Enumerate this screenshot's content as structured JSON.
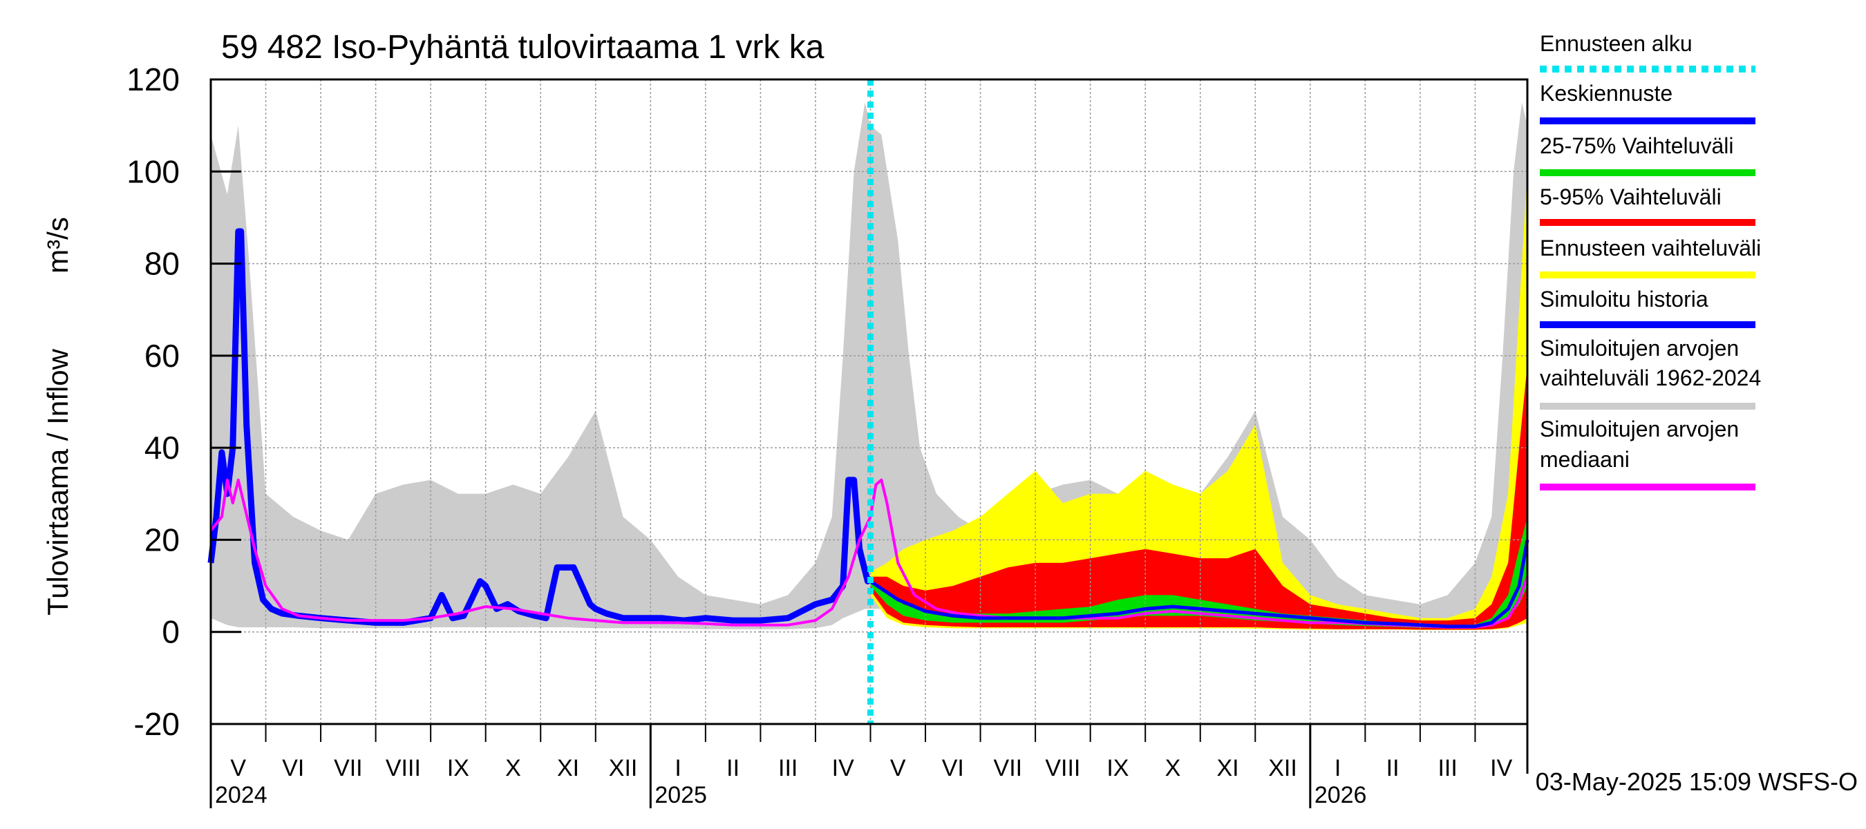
{
  "chart_data": {
    "type": "line",
    "title": "59 482 Iso-Pyhäntä tulovirtaama 1 vrk ka",
    "ylabel": "Tulovirtaama / Inflow",
    "yunit": "m³/s",
    "ylim": [
      -20,
      120
    ],
    "yticks": [
      -20,
      0,
      20,
      40,
      60,
      80,
      100,
      120
    ],
    "x_start_month": 4,
    "months": [
      "V",
      "VI",
      "VII",
      "VIII",
      "IX",
      "X",
      "XI",
      "XII",
      "I",
      "II",
      "III",
      "IV",
      "V",
      "VI",
      "VII",
      "VIII",
      "IX",
      "X",
      "XI",
      "XII",
      "I",
      "II",
      "III",
      "IV"
    ],
    "years": [
      {
        "label": "2024",
        "month_index": 0
      },
      {
        "label": "2025",
        "month_index": 8
      },
      {
        "label": "2026",
        "month_index": 20
      }
    ],
    "x_end_month": 23.95,
    "forecast_start_month": 12.0,
    "grid": true,
    "legend_position": "right",
    "legend": [
      {
        "label": "Ennusteen alku",
        "color": "#00e5ee",
        "style": "dotted"
      },
      {
        "label": "Keskiennuste",
        "color": "#0000ff",
        "style": "solid"
      },
      {
        "label": "25-75% Vaihteluväli",
        "color": "#00dd00",
        "style": "solid"
      },
      {
        "label": "5-95% Vaihteluväli",
        "color": "#ff0000",
        "style": "solid"
      },
      {
        "label": "Ennusteen vaihteluväli",
        "color": "#ffff00",
        "style": "solid"
      },
      {
        "label": "Simuloitu historia",
        "color": "#0000ff",
        "style": "solid"
      },
      {
        "label": "Simuloitujen arvojen vaihteluväli 1962-2024",
        "color": "#cccccc",
        "style": "solid"
      },
      {
        "label": "Simuloitujen arvojen mediaani",
        "color": "#ff00ff",
        "style": "solid"
      }
    ],
    "series": [
      {
        "name": "Simuloitu historia",
        "color": "#0000ff",
        "x": [
          0,
          0.1,
          0.2,
          0.3,
          0.4,
          0.5,
          0.55,
          0.65,
          0.8,
          0.95,
          1.1,
          1.3,
          1.6,
          2.0,
          2.5,
          3.0,
          3.5,
          4.0,
          4.2,
          4.4,
          4.6,
          4.9,
          5.0,
          5.2,
          5.4,
          5.6,
          5.9,
          6.1,
          6.3,
          6.6,
          6.9,
          7.0,
          7.2,
          7.5,
          7.8,
          8.2,
          8.6,
          9.0,
          9.5,
          10.0,
          10.5,
          11.0,
          11.3,
          11.5,
          11.6,
          11.7,
          11.8,
          11.95,
          12.0
        ],
        "y": [
          15,
          25,
          39,
          30,
          40,
          87,
          87,
          45,
          15,
          7,
          5,
          4,
          3.5,
          3,
          2.5,
          2,
          2,
          3,
          8,
          3,
          3.5,
          11,
          10,
          5,
          6,
          4.5,
          3.5,
          3,
          14,
          14,
          6,
          5,
          4,
          3,
          3,
          3,
          2.5,
          3,
          2.5,
          2.5,
          3,
          6,
          7,
          10,
          33,
          33,
          18,
          11,
          12
        ]
      },
      {
        "name": "Simuloitujen arvojen mediaani",
        "color": "#ff00ff",
        "x": [
          0,
          0.2,
          0.3,
          0.4,
          0.5,
          0.6,
          0.8,
          1.0,
          1.3,
          1.6,
          2.0,
          2.5,
          3.0,
          3.5,
          4.0,
          4.5,
          5.0,
          5.5,
          6.0,
          6.5,
          7.0,
          7.5,
          8.0,
          8.5,
          9.0,
          9.5,
          10.0,
          10.5,
          11.0,
          11.3,
          11.6,
          11.8,
          12.0,
          12.1,
          12.2,
          12.3,
          12.5,
          12.8,
          13.2,
          13.6,
          14.0,
          14.5,
          15.0,
          15.5,
          16.0,
          16.5,
          17.0,
          17.5,
          18.0,
          18.5,
          19.0,
          19.5,
          20.0,
          20.5,
          21.0,
          21.5,
          22.0,
          22.5,
          23.0,
          23.3,
          23.6,
          23.8,
          23.95
        ],
        "y": [
          22,
          25,
          33,
          28,
          33,
          28,
          18,
          10,
          5,
          3.5,
          3,
          2.5,
          2.5,
          2.5,
          3,
          4,
          5.5,
          5,
          4,
          3,
          2.5,
          2,
          2,
          2,
          1.8,
          1.5,
          1.5,
          1.5,
          2.5,
          5,
          12,
          20,
          25,
          32,
          33,
          28,
          15,
          8,
          5,
          4,
          3.5,
          3,
          3,
          3,
          3,
          3,
          4,
          4.5,
          4,
          3.5,
          3,
          2.5,
          2,
          2,
          1.8,
          1.5,
          1.3,
          1,
          1,
          1.5,
          3,
          7,
          12
        ]
      },
      {
        "name": "Keskiennuste",
        "color": "#0000ff",
        "x": [
          12.0,
          12.5,
          13.0,
          13.5,
          14.0,
          14.5,
          15.0,
          15.5,
          16.0,
          16.5,
          17.0,
          17.5,
          18.0,
          18.5,
          19.0,
          19.5,
          20.0,
          20.5,
          21.0,
          21.5,
          22.0,
          22.5,
          23.0,
          23.3,
          23.6,
          23.8,
          23.95
        ],
        "y": [
          11,
          7,
          4.5,
          3.5,
          3,
          3,
          3,
          3,
          3.5,
          4,
          5,
          5.5,
          5,
          4.5,
          4,
          3.5,
          3,
          2.5,
          2,
          1.8,
          1.5,
          1.2,
          1.2,
          2,
          5,
          10,
          20
        ]
      },
      {
        "name": "Simuloitujen arvojen vaihteluväli 1962-2024",
        "color": "#cccccc",
        "type": "band",
        "x": [
          0,
          0.3,
          0.5,
          0.7,
          1.0,
          1.5,
          2.0,
          2.5,
          3.0,
          3.5,
          4.0,
          4.5,
          5.0,
          5.5,
          6.0,
          6.5,
          7.0,
          7.5,
          8.0,
          8.5,
          9.0,
          9.5,
          10.0,
          10.5,
          11.0,
          11.3,
          11.5,
          11.7,
          11.9,
          12.0,
          12.2,
          12.5,
          12.7,
          12.9,
          13.2,
          13.6,
          14.0,
          14.5,
          15.0,
          15.5,
          16.0,
          16.5,
          17.0,
          17.5,
          18.0,
          18.5,
          19.0,
          19.5,
          20.0,
          20.5,
          21.0,
          21.5,
          22.0,
          22.5,
          23.0,
          23.3,
          23.5,
          23.7,
          23.85,
          23.95
        ],
        "lower": [
          3,
          1.5,
          1,
          1,
          1,
          1,
          0.8,
          0.8,
          0.8,
          0.8,
          1,
          1,
          1,
          1,
          1,
          1,
          0.8,
          0.8,
          0.8,
          0.7,
          0.6,
          0.6,
          0.6,
          0.6,
          0.8,
          1.5,
          3,
          4,
          5,
          5,
          5,
          4,
          3,
          2.5,
          2,
          1.5,
          1.2,
          1,
          1,
          1,
          1,
          1,
          1,
          1,
          1,
          1,
          0.8,
          0.8,
          0.8,
          0.7,
          0.6,
          0.6,
          0.6,
          0.6,
          0.8,
          1.5,
          3,
          4,
          5,
          5
        ],
        "upper": [
          108,
          95,
          110,
          80,
          30,
          25,
          22,
          20,
          30,
          32,
          33,
          30,
          30,
          32,
          30,
          38,
          48,
          25,
          20,
          12,
          8,
          7,
          6,
          8,
          15,
          25,
          60,
          100,
          115,
          110,
          108,
          85,
          60,
          40,
          30,
          25,
          22,
          20,
          30,
          32,
          33,
          30,
          30,
          32,
          30,
          38,
          48,
          25,
          20,
          12,
          8,
          7,
          6,
          8,
          15,
          25,
          60,
          100,
          115,
          110
        ]
      },
      {
        "name": "Ennusteen vaihteluväli",
        "color": "#ffff00",
        "type": "band",
        "x": [
          12.0,
          12.3,
          12.6,
          13.0,
          13.5,
          14.0,
          14.5,
          15.0,
          15.5,
          16.0,
          16.5,
          17.0,
          17.5,
          18.0,
          18.5,
          19.0,
          19.5,
          20.0,
          20.5,
          21.0,
          21.5,
          22.0,
          22.5,
          23.0,
          23.3,
          23.6,
          23.8,
          23.95
        ],
        "lower": [
          8,
          3,
          1.5,
          1,
          0.8,
          0.8,
          0.8,
          0.8,
          0.8,
          0.8,
          0.8,
          0.8,
          0.8,
          0.8,
          0.8,
          0.7,
          0.6,
          0.5,
          0.5,
          0.5,
          0.5,
          0.4,
          0.4,
          0.4,
          0.5,
          0.8,
          1.5,
          2
        ],
        "upper": [
          13,
          15,
          18,
          20,
          22,
          25,
          30,
          35,
          28,
          30,
          30,
          35,
          32,
          30,
          35,
          45,
          15,
          8,
          6,
          5,
          4,
          3,
          3,
          5,
          12,
          30,
          70,
          100
        ]
      },
      {
        "name": "5-95% Vaihteluväli",
        "color": "#ff0000",
        "type": "band",
        "x": [
          12.0,
          12.3,
          12.6,
          13.0,
          13.5,
          14.0,
          14.5,
          15.0,
          15.5,
          16.0,
          16.5,
          17.0,
          17.5,
          18.0,
          18.5,
          19.0,
          19.5,
          20.0,
          20.5,
          21.0,
          21.5,
          22.0,
          22.5,
          23.0,
          23.3,
          23.6,
          23.8,
          23.95
        ],
        "lower": [
          9,
          4,
          2,
          1.5,
          1.2,
          1,
          1,
          1,
          1,
          1,
          1,
          1,
          1,
          1,
          1,
          1,
          0.8,
          0.7,
          0.6,
          0.6,
          0.6,
          0.5,
          0.5,
          0.5,
          0.6,
          1,
          2,
          3
        ],
        "upper": [
          12,
          12,
          10,
          9,
          10,
          12,
          14,
          15,
          15,
          16,
          17,
          18,
          17,
          16,
          16,
          18,
          10,
          6,
          5,
          4,
          3,
          2.5,
          2.5,
          3,
          6,
          15,
          40,
          58
        ]
      },
      {
        "name": "25-75% Vaihteluväli",
        "color": "#00dd00",
        "type": "band",
        "x": [
          12.0,
          12.3,
          12.6,
          13.0,
          13.5,
          14.0,
          14.5,
          15.0,
          15.5,
          16.0,
          16.5,
          17.0,
          17.5,
          18.0,
          18.5,
          19.0,
          19.5,
          20.0,
          20.5,
          21.0,
          21.5,
          22.0,
          22.5,
          23.0,
          23.3,
          23.6,
          23.8,
          23.95
        ],
        "lower": [
          10,
          6,
          3.5,
          2.5,
          2,
          2,
          2,
          2,
          2,
          2.5,
          3,
          3.5,
          3.5,
          3.5,
          3,
          2.5,
          2.2,
          1.8,
          1.5,
          1.3,
          1.1,
          0.9,
          0.8,
          0.8,
          1.2,
          3,
          6,
          10
        ],
        "upper": [
          11.5,
          8.5,
          6,
          4.5,
          4,
          4,
          4,
          4.5,
          5,
          5.5,
          7,
          8,
          8,
          7,
          6,
          5,
          4,
          3.5,
          3,
          2.5,
          2,
          1.6,
          1.5,
          1.6,
          3,
          8,
          18,
          25
        ]
      }
    ]
  },
  "footer": {
    "timestamp": "03-May-2025 15:09 WSFS-O"
  }
}
